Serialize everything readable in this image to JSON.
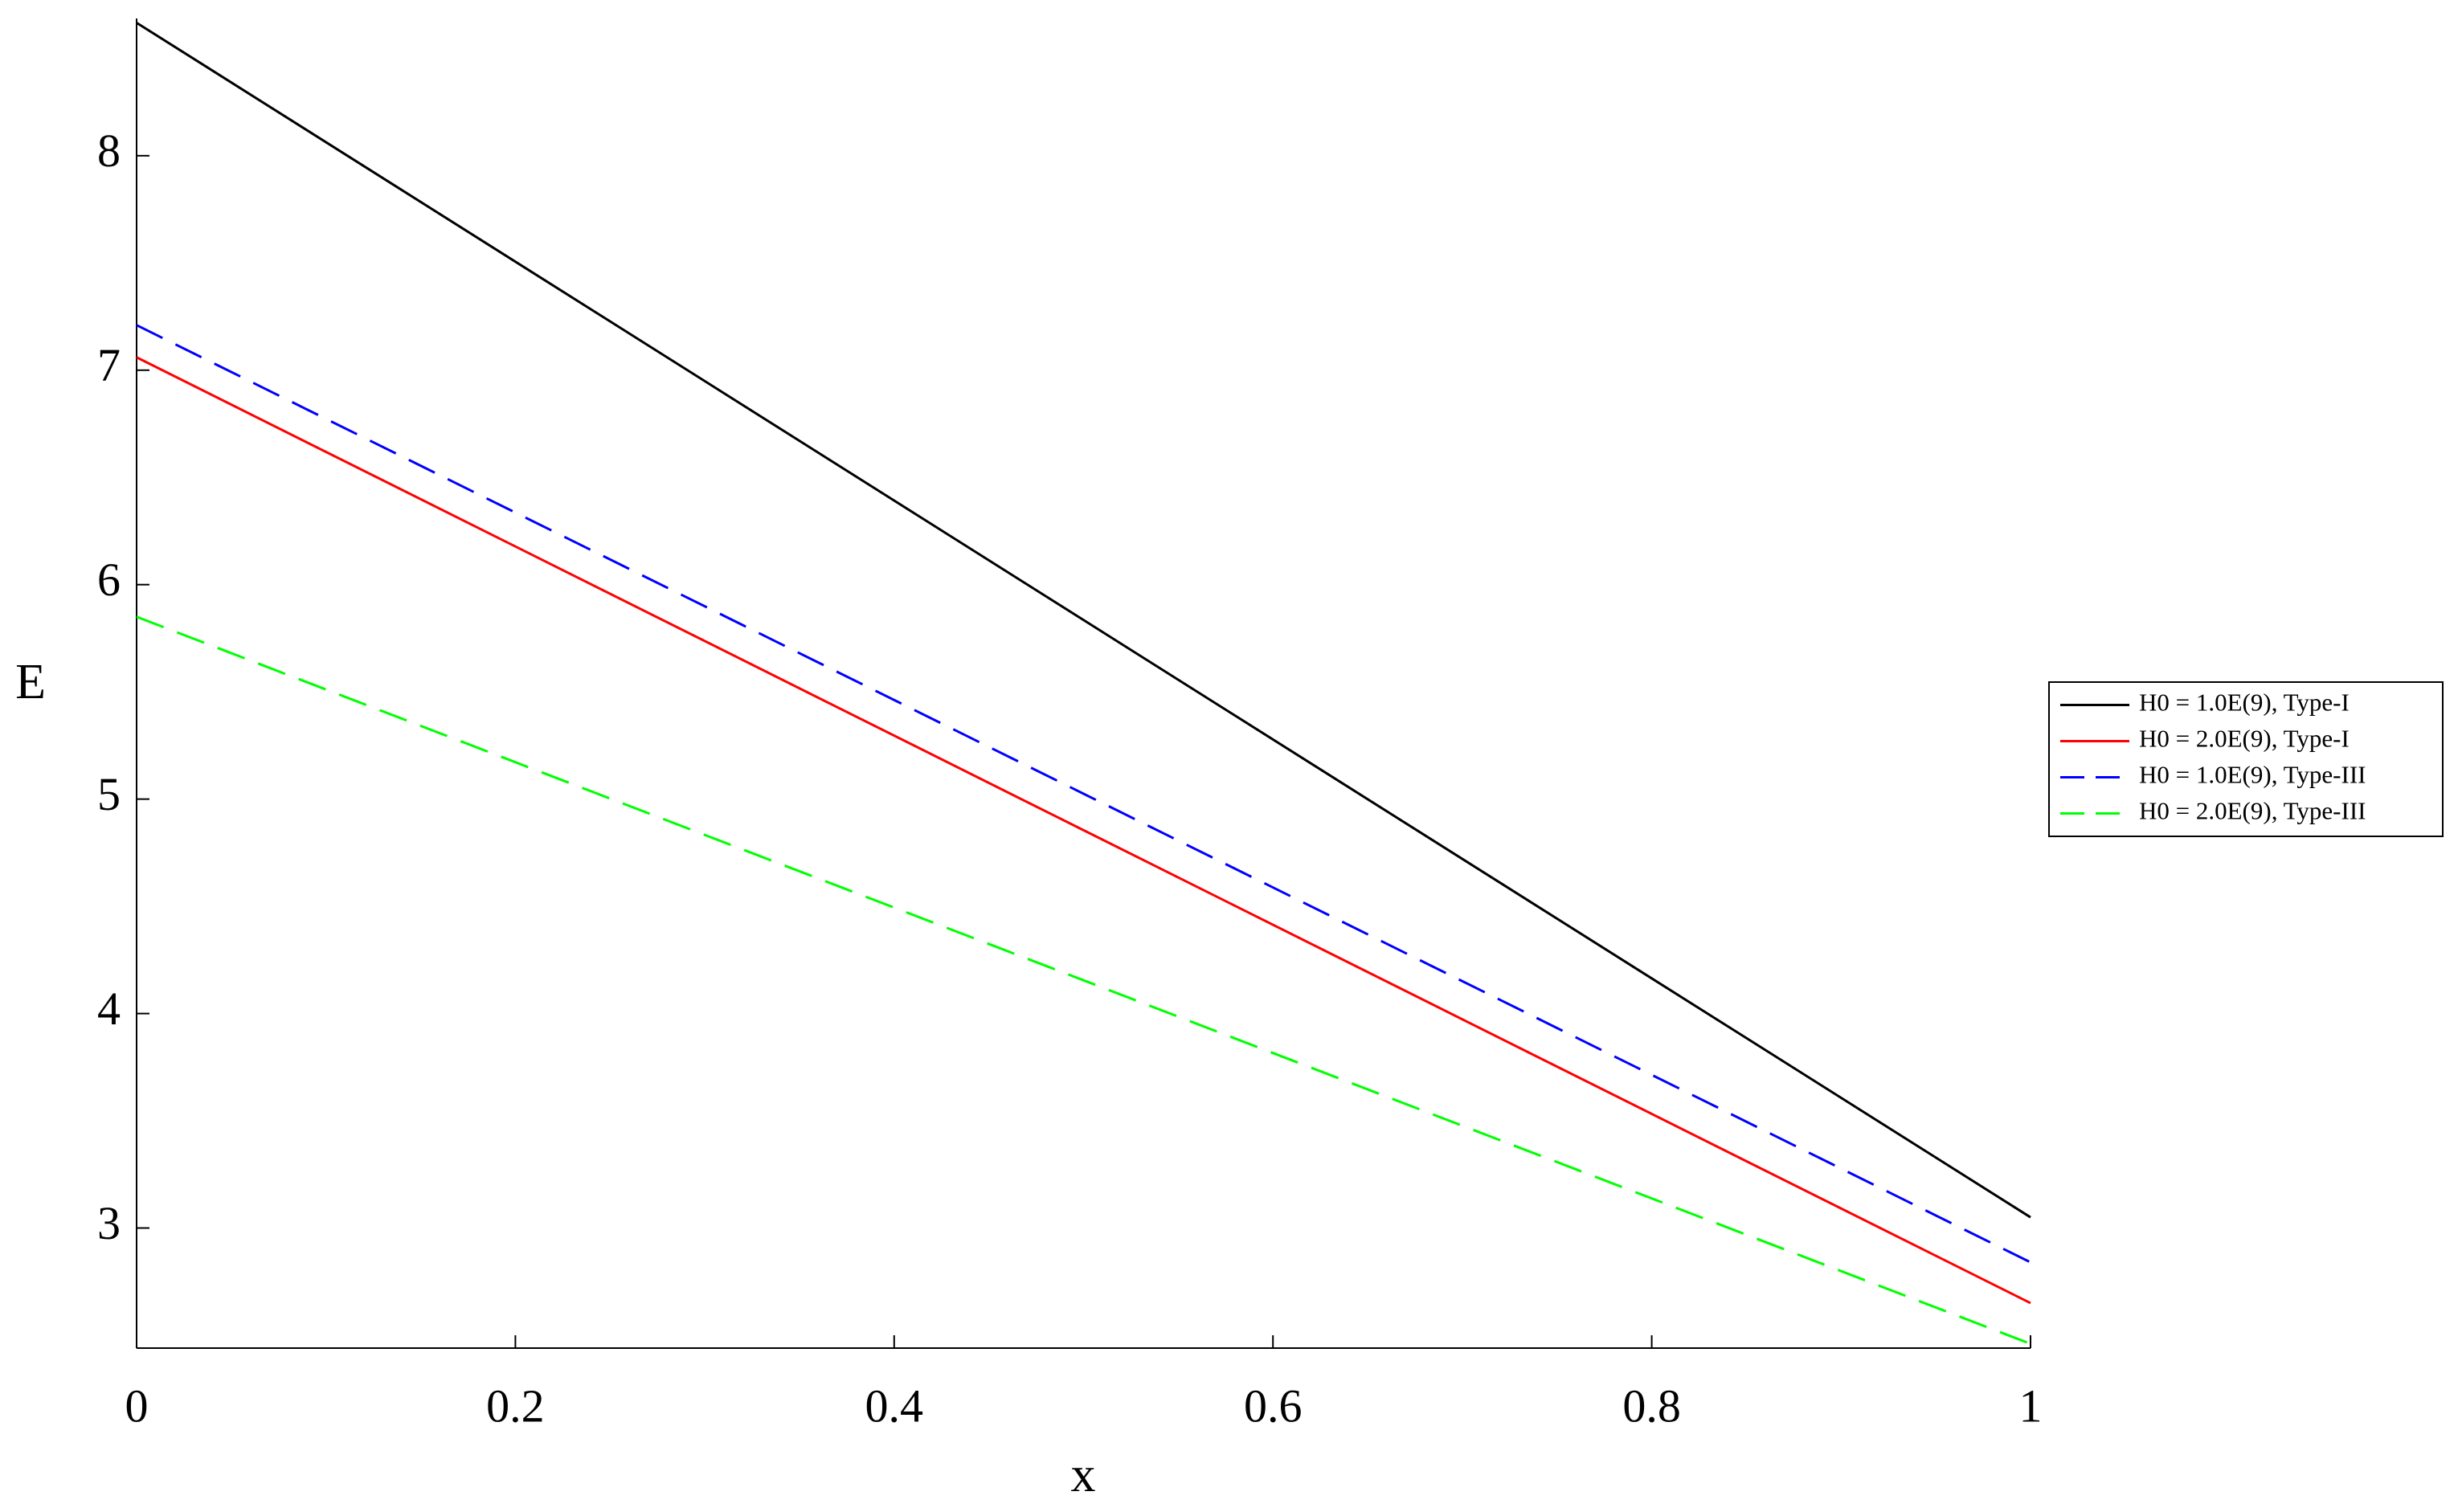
{
  "chart_data": {
    "type": "line",
    "x_label": "x",
    "y_label": "E",
    "x": [
      0,
      0.5,
      1
    ],
    "series": [
      {
        "name": "H0 = 1.0E(9), Type-I",
        "color": "#000000",
        "dash": "solid",
        "values": [
          8.62,
          5.835,
          3.05
        ]
      },
      {
        "name": "H0 = 2.0E(9), Type-I",
        "color": "#ff0000",
        "dash": "solid",
        "values": [
          7.06,
          4.855,
          2.65
        ]
      },
      {
        "name": "H0 = 1.0E(9), Type-III",
        "color": "#0000ff",
        "dash": "dashed",
        "values": [
          7.21,
          5.025,
          2.84
        ]
      },
      {
        "name": "H0 = 2.0E(9), Type-III",
        "color": "#00ff00",
        "dash": "dashed",
        "values": [
          5.85,
          4.155,
          2.46
        ]
      }
    ],
    "xlim": [
      0,
      1
    ],
    "ylim": [
      2.44,
      8.64
    ],
    "xticks": [
      0,
      0.2,
      0.4,
      0.6,
      0.8,
      1
    ],
    "yticks": [
      3,
      4,
      5,
      6,
      7,
      8
    ],
    "grid": false,
    "legend": "right"
  }
}
